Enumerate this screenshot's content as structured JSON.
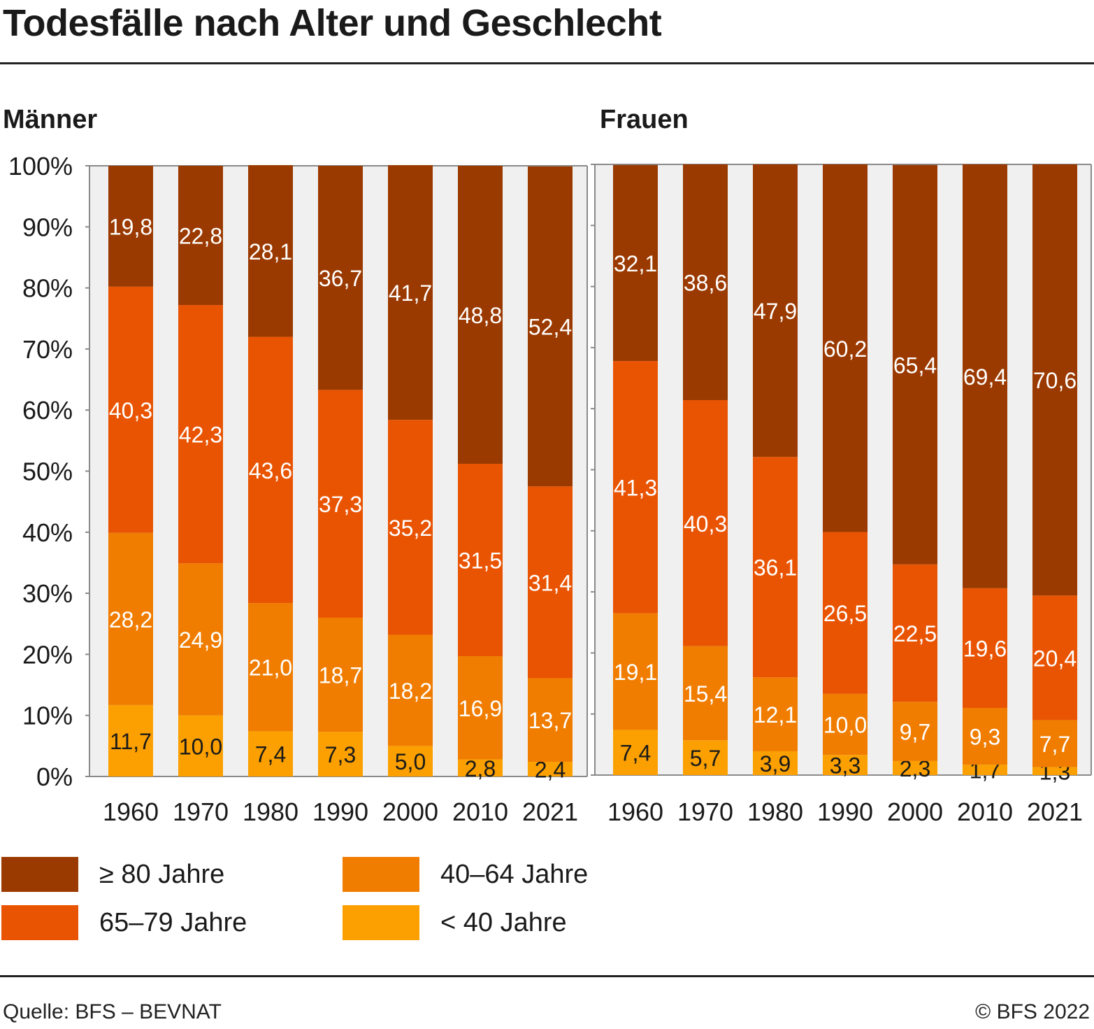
{
  "title": "Todesfälle nach Alter und Geschlecht",
  "source": "Quelle: BFS – BEVNAT",
  "copyright": "© BFS 2022",
  "colors": {
    "80plus": "#9b3a00",
    "65to79": "#e95402",
    "40to64": "#f07d00",
    "under40": "#fba000",
    "plot_bg": "#f0f0f0",
    "axis": "#8a8a8a"
  },
  "legend": [
    {
      "label": "≥ 80 Jahre",
      "color": "#9b3a00"
    },
    {
      "label": "40–64 Jahre",
      "color": "#f07d00"
    },
    {
      "label": "65–79 Jahre",
      "color": "#e95402"
    },
    {
      "label": "< 40 Jahre",
      "color": "#fba000"
    }
  ],
  "chart_data": [
    {
      "type": "bar",
      "stacked": true,
      "title": "Männer",
      "categories": [
        "1960",
        "1970",
        "1980",
        "1990",
        "2000",
        "2010",
        "2021"
      ],
      "ylim": [
        0,
        100
      ],
      "yticks": [
        "0%",
        "10%",
        "20%",
        "30%",
        "40%",
        "50%",
        "60%",
        "70%",
        "80%",
        "90%",
        "100%"
      ],
      "series": [
        {
          "name": "< 40 Jahre",
          "values": [
            "11,7",
            "10,0",
            "7,4",
            "7,3",
            "5,0",
            "2,8",
            "2,4"
          ]
        },
        {
          "name": "40–64 Jahre",
          "values": [
            "28,2",
            "24,9",
            "21,0",
            "18,7",
            "18,2",
            "16,9",
            "13,7"
          ]
        },
        {
          "name": "65–79 Jahre",
          "values": [
            "40,3",
            "42,3",
            "43,6",
            "37,3",
            "35,2",
            "31,5",
            "31,4"
          ]
        },
        {
          "name": "≥ 80 Jahre",
          "values": [
            "19,8",
            "22,8",
            "28,1",
            "36,7",
            "41,7",
            "48,8",
            "52,4"
          ]
        }
      ]
    },
    {
      "type": "bar",
      "stacked": true,
      "title": "Frauen",
      "categories": [
        "1960",
        "1970",
        "1980",
        "1990",
        "2000",
        "2010",
        "2021"
      ],
      "ylim": [
        0,
        100
      ],
      "series": [
        {
          "name": "< 40 Jahre",
          "values": [
            "7,4",
            "5,7",
            "3,9",
            "3,3",
            "2,3",
            "1,7",
            "1,3"
          ]
        },
        {
          "name": "40–64 Jahre",
          "values": [
            "19,1",
            "15,4",
            "12,1",
            "10,0",
            "9,7",
            "9,3",
            "7,7"
          ]
        },
        {
          "name": "65–79 Jahre",
          "values": [
            "41,3",
            "40,3",
            "36,1",
            "26,5",
            "22,5",
            "19,6",
            "20,4"
          ]
        },
        {
          "name": "≥ 80 Jahre",
          "values": [
            "32,1",
            "38,6",
            "47,9",
            "60,2",
            "65,4",
            "69,4",
            "70,6"
          ]
        }
      ]
    }
  ]
}
